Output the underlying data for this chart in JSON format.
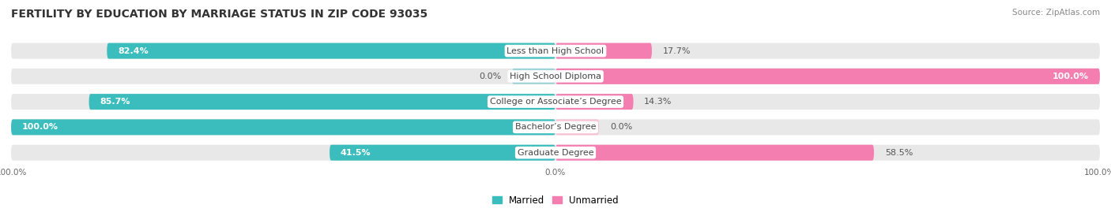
{
  "title": "FERTILITY BY EDUCATION BY MARRIAGE STATUS IN ZIP CODE 93035",
  "source": "Source: ZipAtlas.com",
  "categories": [
    "Less than High School",
    "High School Diploma",
    "College or Associate’s Degree",
    "Bachelor’s Degree",
    "Graduate Degree"
  ],
  "married": [
    82.4,
    0.0,
    85.7,
    100.0,
    41.5
  ],
  "unmarried": [
    17.7,
    100.0,
    14.3,
    0.0,
    58.5
  ],
  "married_color": "#3BBDBD",
  "unmarried_color": "#F47EB0",
  "married_light_color": "#A0D4D8",
  "unmarried_light_color": "#F9C0D4",
  "row_bg_color": "#E8E8E8",
  "title_fontsize": 10,
  "label_fontsize": 8,
  "bar_height": 0.62,
  "figsize": [
    14.06,
    2.69
  ],
  "dpi": 100
}
